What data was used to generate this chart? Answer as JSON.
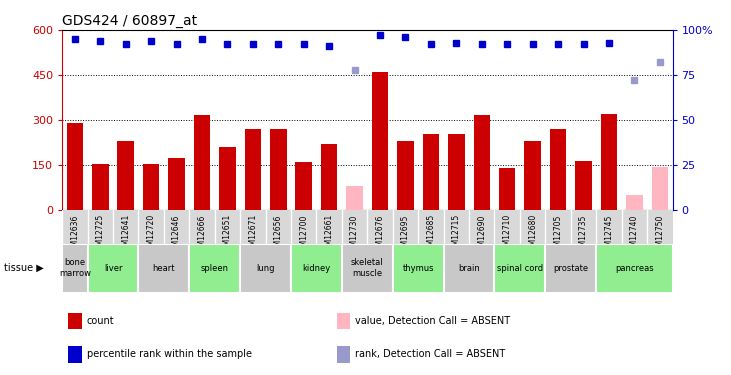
{
  "title": "GDS424 / 60897_at",
  "samples": [
    "GSM12636",
    "GSM12725",
    "GSM12641",
    "GSM12720",
    "GSM12646",
    "GSM12666",
    "GSM12651",
    "GSM12671",
    "GSM12656",
    "GSM12700",
    "GSM12661",
    "GSM12730",
    "GSM12676",
    "GSM12695",
    "GSM12685",
    "GSM12715",
    "GSM12690",
    "GSM12710",
    "GSM12680",
    "GSM12705",
    "GSM12735",
    "GSM12745",
    "GSM12740",
    "GSM12750"
  ],
  "bar_values": [
    290,
    155,
    230,
    155,
    175,
    315,
    210,
    270,
    270,
    160,
    220,
    null,
    460,
    230,
    255,
    255,
    315,
    140,
    230,
    270,
    165,
    320,
    null,
    null
  ],
  "bar_absent": [
    null,
    null,
    null,
    null,
    null,
    null,
    null,
    null,
    null,
    null,
    null,
    80,
    null,
    null,
    null,
    null,
    null,
    null,
    null,
    null,
    null,
    null,
    50,
    145
  ],
  "rank_values": [
    95,
    94,
    92,
    94,
    92,
    95,
    92,
    92,
    92,
    92,
    91,
    null,
    97,
    96,
    92,
    93,
    92,
    92,
    92,
    92,
    92,
    93,
    null,
    null
  ],
  "rank_absent": [
    null,
    null,
    null,
    null,
    null,
    null,
    null,
    null,
    null,
    null,
    null,
    78,
    null,
    null,
    null,
    null,
    null,
    null,
    null,
    null,
    null,
    null,
    72,
    82
  ],
  "tissues": [
    {
      "name": "bone\nmarrow",
      "start": 0,
      "end": 1,
      "color": "#c8c8c8"
    },
    {
      "name": "liver",
      "start": 1,
      "end": 3,
      "color": "#90EE90"
    },
    {
      "name": "heart",
      "start": 3,
      "end": 5,
      "color": "#c8c8c8"
    },
    {
      "name": "spleen",
      "start": 5,
      "end": 7,
      "color": "#90EE90"
    },
    {
      "name": "lung",
      "start": 7,
      "end": 9,
      "color": "#c8c8c8"
    },
    {
      "name": "kidney",
      "start": 9,
      "end": 11,
      "color": "#90EE90"
    },
    {
      "name": "skeletal\nmuscle",
      "start": 11,
      "end": 13,
      "color": "#c8c8c8"
    },
    {
      "name": "thymus",
      "start": 13,
      "end": 15,
      "color": "#90EE90"
    },
    {
      "name": "brain",
      "start": 15,
      "end": 17,
      "color": "#c8c8c8"
    },
    {
      "name": "spinal cord",
      "start": 17,
      "end": 19,
      "color": "#90EE90"
    },
    {
      "name": "prostate",
      "start": 19,
      "end": 21,
      "color": "#c8c8c8"
    },
    {
      "name": "pancreas",
      "start": 21,
      "end": 24,
      "color": "#90EE90"
    }
  ],
  "ylim_left": [
    0,
    600
  ],
  "ylim_right": [
    0,
    100
  ],
  "yticks_left": [
    0,
    150,
    300,
    450,
    600
  ],
  "yticks_right": [
    0,
    25,
    50,
    75,
    100
  ],
  "bar_color": "#cc0000",
  "bar_absent_color": "#ffb6c1",
  "rank_color": "#0000cc",
  "rank_absent_color": "#9999cc",
  "tissue_label": "tissue",
  "legend_items": [
    {
      "label": "count",
      "color": "#cc0000"
    },
    {
      "label": "percentile rank within the sample",
      "color": "#0000cc"
    },
    {
      "label": "value, Detection Call = ABSENT",
      "color": "#ffb6c1"
    },
    {
      "label": "rank, Detection Call = ABSENT",
      "color": "#9999cc"
    }
  ],
  "bg_color": "#f0f0f0"
}
